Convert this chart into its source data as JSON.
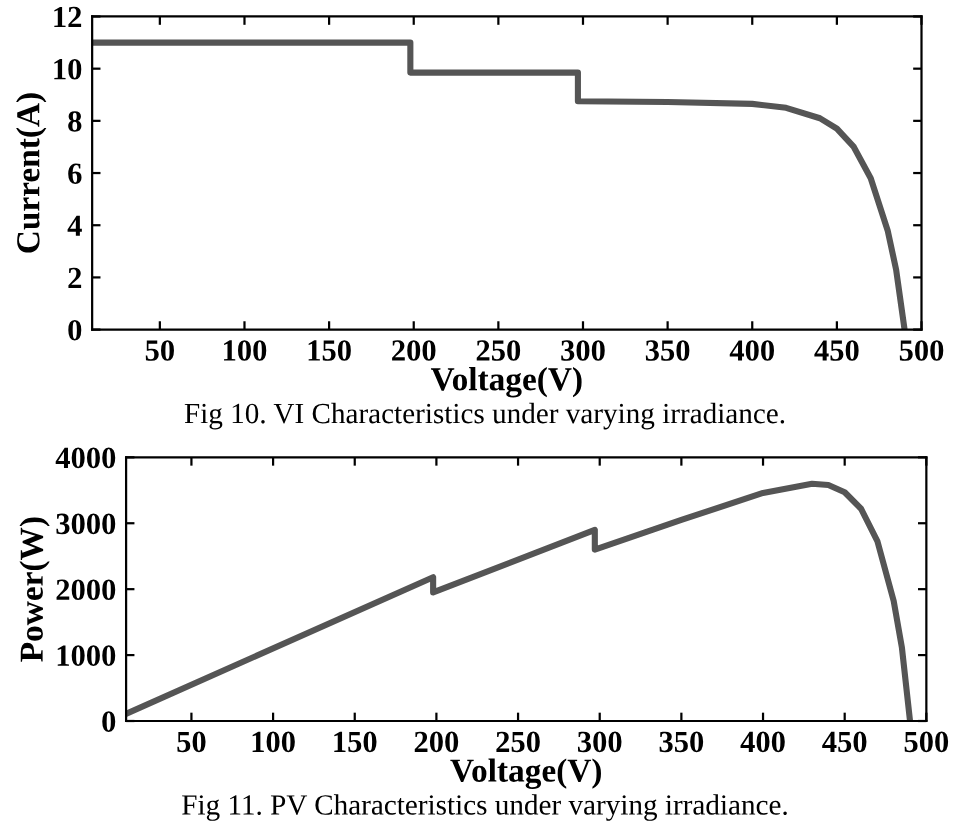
{
  "chart_data": [
    {
      "type": "line",
      "xlabel": "Voltage(V)",
      "ylabel": "Current(A)",
      "xlim": [
        10,
        500
      ],
      "xticks": [
        50,
        100,
        150,
        200,
        250,
        300,
        350,
        400,
        450,
        500
      ],
      "ylim": [
        0,
        12
      ],
      "yticks": [
        0,
        2,
        4,
        6,
        8,
        10,
        12
      ],
      "grid": false,
      "annotations": [
        "Fig 10. VI Characteristics under varying irradiance."
      ],
      "series": [
        {
          "color": "#555555",
          "x": [
            10,
            198,
            198,
            297,
            297,
            350,
            400,
            420,
            440,
            450,
            460,
            470,
            480,
            485,
            490
          ],
          "values": [
            11,
            11,
            9.85,
            9.85,
            8.75,
            8.72,
            8.65,
            8.5,
            8.1,
            7.7,
            7.0,
            5.8,
            3.8,
            2.3,
            0
          ]
        }
      ]
    },
    {
      "type": "line",
      "xlabel": "Voltage(V)",
      "ylabel": "Power(W)",
      "xlim": [
        10,
        500
      ],
      "xticks": [
        50,
        100,
        150,
        200,
        250,
        300,
        350,
        400,
        450,
        500
      ],
      "ylim": [
        0,
        4000
      ],
      "yticks": [
        0,
        1000,
        2000,
        3000,
        4000
      ],
      "grid": false,
      "annotations": [
        "Fig 11. PV Characteristics under varying irradiance."
      ],
      "series": [
        {
          "color": "#555555",
          "x": [
            10,
            198,
            198,
            297,
            297,
            350,
            400,
            430,
            440,
            450,
            460,
            470,
            480,
            485,
            490
          ],
          "values": [
            110,
            2180,
            1950,
            2900,
            2600,
            3050,
            3460,
            3600,
            3580,
            3470,
            3220,
            2730,
            1820,
            1120,
            0
          ]
        }
      ]
    }
  ]
}
